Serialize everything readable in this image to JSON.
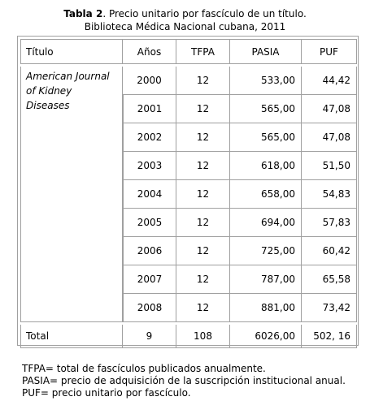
{
  "caption": {
    "label": "Tabla 2",
    "text": ". Precio unitario por fascículo de un título.",
    "line2": "Biblioteca Médica Nacional cubana, 2011"
  },
  "table": {
    "headers": [
      "Título",
      "Años",
      "TFPA",
      "PASIA",
      "PUF"
    ],
    "title_lines": [
      "American Journal",
      "of Kidney",
      "Diseases"
    ],
    "rows": [
      {
        "year": "2000",
        "tfpa": "12",
        "pasia": "533,00",
        "puf": "44,42"
      },
      {
        "year": "2001",
        "tfpa": "12",
        "pasia": "565,00",
        "puf": "47,08"
      },
      {
        "year": "2002",
        "tfpa": "12",
        "pasia": "565,00",
        "puf": "47,08"
      },
      {
        "year": "2003",
        "tfpa": "12",
        "pasia": "618,00",
        "puf": "51,50"
      },
      {
        "year": "2004",
        "tfpa": "12",
        "pasia": "658,00",
        "puf": "54,83"
      },
      {
        "year": "2005",
        "tfpa": "12",
        "pasia": "694,00",
        "puf": "57,83"
      },
      {
        "year": "2006",
        "tfpa": "12",
        "pasia": "725,00",
        "puf": "60,42"
      },
      {
        "year": "2007",
        "tfpa": "12",
        "pasia": "787,00",
        "puf": "65,58"
      },
      {
        "year": "2008",
        "tfpa": "12",
        "pasia": "881,00",
        "puf": "73,42"
      }
    ],
    "total": {
      "label": "Total",
      "years": "9",
      "tfpa": "108",
      "pasia": "6026,00",
      "puf": "502, 16"
    }
  },
  "notes": [
    "TFPA= total de fascículos publicados anualmente.",
    "PASIA= precio de adquisición de la suscripción institucional anual.",
    "PUF= precio unitario por fascículo."
  ]
}
